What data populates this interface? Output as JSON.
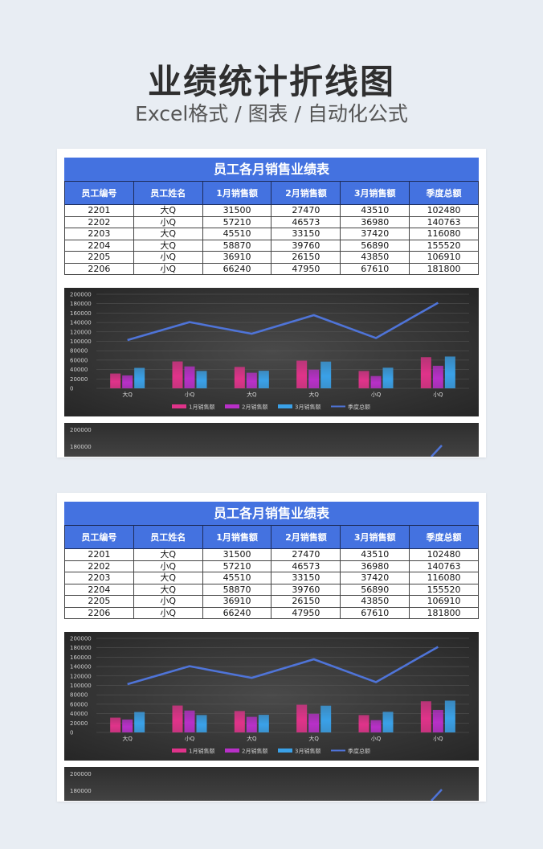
{
  "hero": {
    "title": "业绩统计折线图",
    "subtitle": "Excel格式 / 图表 / 自动化公式"
  },
  "sheet": {
    "title": "员工各月销售业绩表",
    "headers": [
      "员工编号",
      "员工姓名",
      "1月销售额",
      "2月销售额",
      "3月销售额",
      "季度总额"
    ],
    "rows": [
      [
        "2201",
        "大Q",
        "31500",
        "27470",
        "43510",
        "102480"
      ],
      [
        "2202",
        "小Q",
        "57210",
        "46573",
        "36980",
        "140763"
      ],
      [
        "2203",
        "大Q",
        "45510",
        "33150",
        "37420",
        "116080"
      ],
      [
        "2204",
        "大Q",
        "58870",
        "39760",
        "56890",
        "155520"
      ],
      [
        "2205",
        "小Q",
        "36910",
        "26150",
        "43850",
        "106910"
      ],
      [
        "2206",
        "小Q",
        "66240",
        "47950",
        "67610",
        "181800"
      ]
    ]
  },
  "chart_data": {
    "type": "bar",
    "categories": [
      "大Q",
      "小Q",
      "大Q",
      "大Q",
      "小Q",
      "小Q"
    ],
    "series": [
      {
        "name": "1月销售额",
        "type": "bar",
        "color": "#e0338a",
        "values": [
          31500,
          57210,
          45510,
          58870,
          36910,
          66240
        ]
      },
      {
        "name": "2月销售额",
        "type": "bar",
        "color": "#b830c8",
        "values": [
          27470,
          46573,
          33150,
          39760,
          26150,
          47950
        ]
      },
      {
        "name": "3月销售额",
        "type": "bar",
        "color": "#3aa1e8",
        "values": [
          43510,
          36980,
          37420,
          56890,
          43850,
          67610
        ]
      },
      {
        "name": "季度总额",
        "type": "line",
        "color": "#4f74d8",
        "values": [
          102480,
          140763,
          116080,
          155520,
          106910,
          181800
        ]
      }
    ],
    "yticks": [
      "0",
      "20000",
      "40000",
      "60000",
      "80000",
      "100000",
      "120000",
      "140000",
      "160000",
      "180000",
      "200000"
    ],
    "ylim": [
      0,
      200000
    ],
    "legend": "bottom",
    "grid": true
  },
  "peek": {
    "ticks": [
      "200000",
      "180000"
    ]
  }
}
